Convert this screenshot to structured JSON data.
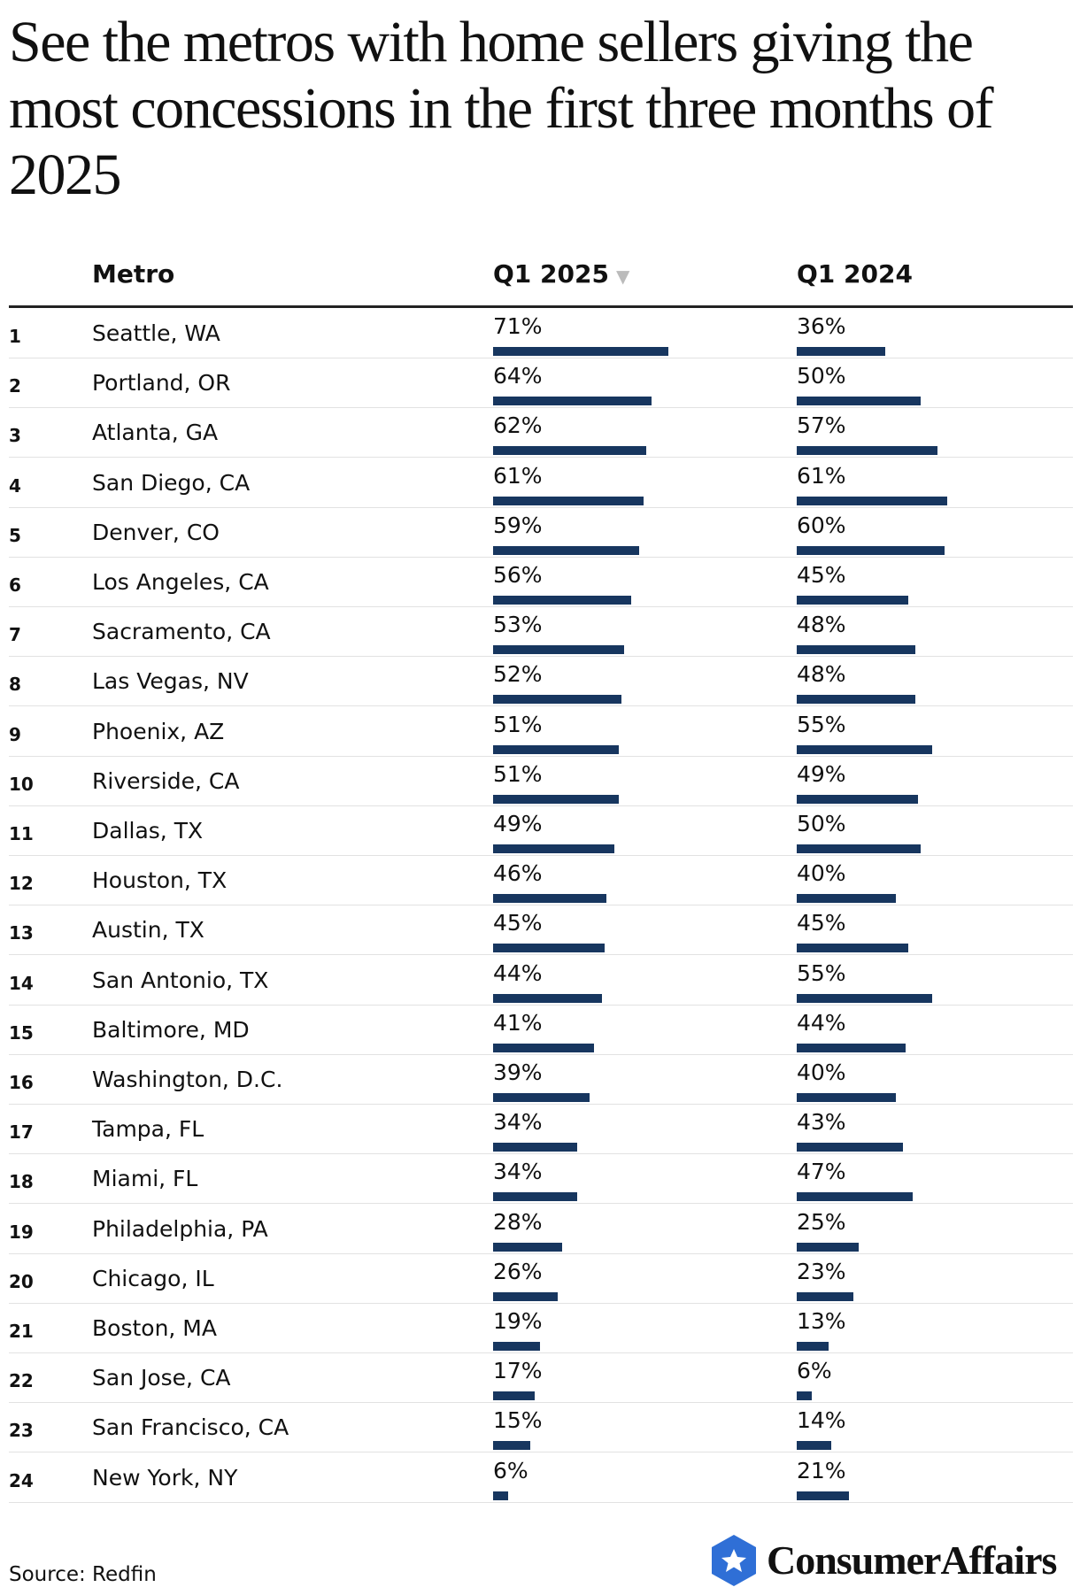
{
  "title": "See the metros with home sellers giving the most concessions in the first three months of 2025",
  "table": {
    "header": {
      "metro": "Metro",
      "q2025": "Q1 2025",
      "q2024": "Q1 2024"
    },
    "rows": [
      {
        "rank": 1,
        "metro": "Seattle, WA",
        "q2025": 71,
        "q2025_label": "71%",
        "q2024": 36,
        "q2024_label": "36%"
      },
      {
        "rank": 2,
        "metro": "Portland, OR",
        "q2025": 64,
        "q2025_label": "64%",
        "q2024": 50,
        "q2024_label": "50%"
      },
      {
        "rank": 3,
        "metro": "Atlanta, GA",
        "q2025": 62,
        "q2025_label": "62%",
        "q2024": 57,
        "q2024_label": "57%"
      },
      {
        "rank": 4,
        "metro": "San Diego, CA",
        "q2025": 61,
        "q2025_label": "61%",
        "q2024": 61,
        "q2024_label": "61%"
      },
      {
        "rank": 5,
        "metro": "Denver, CO",
        "q2025": 59,
        "q2025_label": "59%",
        "q2024": 60,
        "q2024_label": "60%"
      },
      {
        "rank": 6,
        "metro": "Los Angeles, CA",
        "q2025": 56,
        "q2025_label": "56%",
        "q2024": 45,
        "q2024_label": "45%"
      },
      {
        "rank": 7,
        "metro": "Sacramento, CA",
        "q2025": 53,
        "q2025_label": "53%",
        "q2024": 48,
        "q2024_label": "48%"
      },
      {
        "rank": 8,
        "metro": "Las Vegas, NV",
        "q2025": 52,
        "q2025_label": "52%",
        "q2024": 48,
        "q2024_label": "48%"
      },
      {
        "rank": 9,
        "metro": "Phoenix, AZ",
        "q2025": 51,
        "q2025_label": "51%",
        "q2024": 55,
        "q2024_label": "55%"
      },
      {
        "rank": 10,
        "metro": "Riverside, CA",
        "q2025": 51,
        "q2025_label": "51%",
        "q2024": 49,
        "q2024_label": "49%"
      },
      {
        "rank": 11,
        "metro": "Dallas, TX",
        "q2025": 49,
        "q2025_label": "49%",
        "q2024": 50,
        "q2024_label": "50%"
      },
      {
        "rank": 12,
        "metro": "Houston, TX",
        "q2025": 46,
        "q2025_label": "46%",
        "q2024": 40,
        "q2024_label": "40%"
      },
      {
        "rank": 13,
        "metro": "Austin, TX",
        "q2025": 45,
        "q2025_label": "45%",
        "q2024": 45,
        "q2024_label": "45%"
      },
      {
        "rank": 14,
        "metro": "San Antonio, TX",
        "q2025": 44,
        "q2025_label": "44%",
        "q2024": 55,
        "q2024_label": "55%"
      },
      {
        "rank": 15,
        "metro": "Baltimore, MD",
        "q2025": 41,
        "q2025_label": "41%",
        "q2024": 44,
        "q2024_label": "44%"
      },
      {
        "rank": 16,
        "metro": "Washington, D.C.",
        "q2025": 39,
        "q2025_label": "39%",
        "q2024": 40,
        "q2024_label": "40%"
      },
      {
        "rank": 17,
        "metro": "Tampa, FL",
        "q2025": 34,
        "q2025_label": "34%",
        "q2024": 43,
        "q2024_label": "43%"
      },
      {
        "rank": 18,
        "metro": "Miami, FL",
        "q2025": 34,
        "q2025_label": "34%",
        "q2024": 47,
        "q2024_label": "47%"
      },
      {
        "rank": 19,
        "metro": "Philadelphia, PA",
        "q2025": 28,
        "q2025_label": "28%",
        "q2024": 25,
        "q2024_label": "25%"
      },
      {
        "rank": 20,
        "metro": "Chicago, IL",
        "q2025": 26,
        "q2025_label": "26%",
        "q2024": 23,
        "q2024_label": "23%"
      },
      {
        "rank": 21,
        "metro": "Boston, MA",
        "q2025": 19,
        "q2025_label": "19%",
        "q2024": 13,
        "q2024_label": "13%"
      },
      {
        "rank": 22,
        "metro": "San Jose, CA",
        "q2025": 17,
        "q2025_label": "17%",
        "q2024": 6,
        "q2024_label": "6%"
      },
      {
        "rank": 23,
        "metro": "San Francisco, CA",
        "q2025": 15,
        "q2025_label": "15%",
        "q2024": 14,
        "q2024_label": "14%"
      },
      {
        "rank": 24,
        "metro": "New York, NY",
        "q2025": 6,
        "q2025_label": "6%",
        "q2024": 21,
        "q2024_label": "21%"
      }
    ]
  },
  "source": "Source: Redfin",
  "logo": "ConsumerAffairs"
}
